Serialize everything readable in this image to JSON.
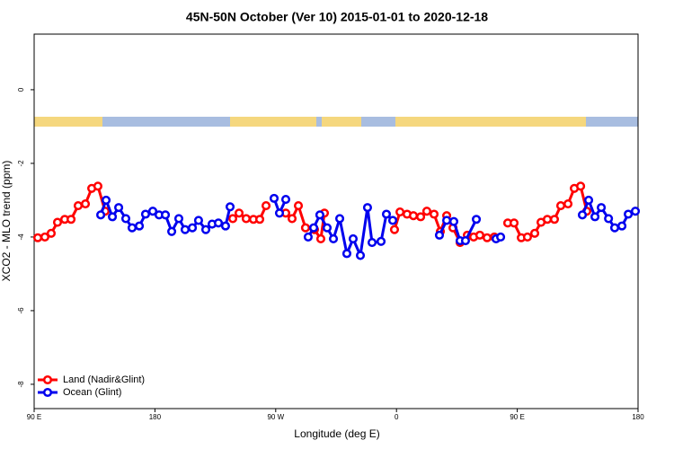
{
  "chart_data": {
    "type": "line",
    "title": "45N-50N October (Ver 10)   2015-01-01 to 2020-12-18",
    "x_label": "Longitude (deg E)",
    "y_label": "XCO2 - MLO trend (ppm)",
    "xlim": [
      90,
      540
    ],
    "ylim": [
      -8.66,
      1.51
    ],
    "xticks": [
      {
        "value": 90,
        "label": "90 E"
      },
      {
        "value": 180,
        "label": "180"
      },
      {
        "value": 270,
        "label": "90 W"
      },
      {
        "value": 360,
        "label": "0"
      },
      {
        "value": 450,
        "label": "90 E"
      },
      {
        "value": 540,
        "label": "180"
      }
    ],
    "yticks": [
      0,
      -2,
      -4,
      -6,
      -8
    ],
    "legend": "bottom-left",
    "series": [
      {
        "name": "Land (Nadir&Glint)",
        "color": "#ff0000",
        "x": [
          92.7,
          98,
          102.7,
          107.4,
          112.8,
          117.5,
          122.8,
          128.2,
          132.9,
          137.5,
          142.9,
          null,
          238,
          242.7,
          248,
          253.4,
          258.1,
          262.8,
          null,
          277.5,
          282.2,
          286.9,
          292.2,
          298.9,
          303.6,
          306.3,
          null,
          358.5,
          362.6,
          367.9,
          372.6,
          378,
          382.6,
          388,
          392.7,
          397.4,
          402.1,
          407.4,
          412.8,
          417.5,
          422.1,
          427.5,
          432.9,
          null,
          442.9,
          447.6,
          453,
          457.6,
          463,
          467.7,
          472.4,
          477.7,
          482.4,
          487.8,
          492.5,
          497.2,
          501.8
        ],
        "values": [
          -4.02,
          -4.0,
          -3.9,
          -3.6,
          -3.52,
          -3.52,
          -3.15,
          -3.1,
          -2.68,
          -2.62,
          -3.3,
          null,
          -3.5,
          -3.35,
          -3.5,
          -3.52,
          -3.52,
          -3.15,
          null,
          -3.35,
          -3.5,
          -3.15,
          -3.75,
          -3.8,
          -4.05,
          -3.35,
          null,
          -3.8,
          -3.32,
          -3.38,
          -3.42,
          -3.45,
          -3.3,
          -3.38,
          -3.85,
          -3.42,
          -3.75,
          -4.15,
          -3.95,
          -4.0,
          -3.95,
          -4.02,
          -4.0,
          null,
          -3.62,
          -3.62,
          -4.02,
          -4.0,
          -3.9,
          -3.6,
          -3.52,
          -3.52,
          -3.15,
          -3.1,
          -2.68,
          -2.62,
          -3.3
        ]
      },
      {
        "name": "Ocean (Glint)",
        "color": "#0000ee",
        "x": [
          139.6,
          143.6,
          148.3,
          153,
          158.3,
          163,
          168.4,
          173,
          178.4,
          183.1,
          187.8,
          192.5,
          197.8,
          202.5,
          207.9,
          212.5,
          217.9,
          222.6,
          227.3,
          232.6,
          236,
          null,
          268.8,
          272.8,
          277.5,
          null,
          294.2,
          298.3,
          302.9,
          308.3,
          313,
          317.7,
          323,
          327.7,
          333.1,
          338.4,
          341.8,
          348.5,
          352.5,
          357.2,
          null,
          392,
          397.4,
          402.7,
          407.4,
          411.4,
          419.5,
          null,
          434.2,
          437.6,
          null,
          498.5,
          503.2,
          507.9,
          512.6,
          518,
          522.6,
          528,
          532.7,
          538
        ],
        "values": [
          -3.4,
          -3.0,
          -3.45,
          -3.2,
          -3.5,
          -3.75,
          -3.7,
          -3.38,
          -3.3,
          -3.4,
          -3.4,
          -3.85,
          -3.5,
          -3.8,
          -3.75,
          -3.55,
          -3.8,
          -3.65,
          -3.62,
          -3.7,
          -3.18,
          null,
          -2.95,
          -3.35,
          -2.98,
          null,
          -4.0,
          -3.75,
          -3.4,
          -3.75,
          -4.05,
          -3.5,
          -4.45,
          -4.05,
          -4.5,
          -3.2,
          -4.15,
          -4.12,
          -3.38,
          -3.55,
          null,
          -3.95,
          -3.55,
          -3.58,
          -4.1,
          -4.1,
          -3.52,
          null,
          -4.05,
          -4.0,
          null,
          -3.4,
          -3.0,
          -3.45,
          -3.2,
          -3.5,
          -3.75,
          -3.7,
          -3.38,
          -3.3
        ]
      }
    ]
  }
}
